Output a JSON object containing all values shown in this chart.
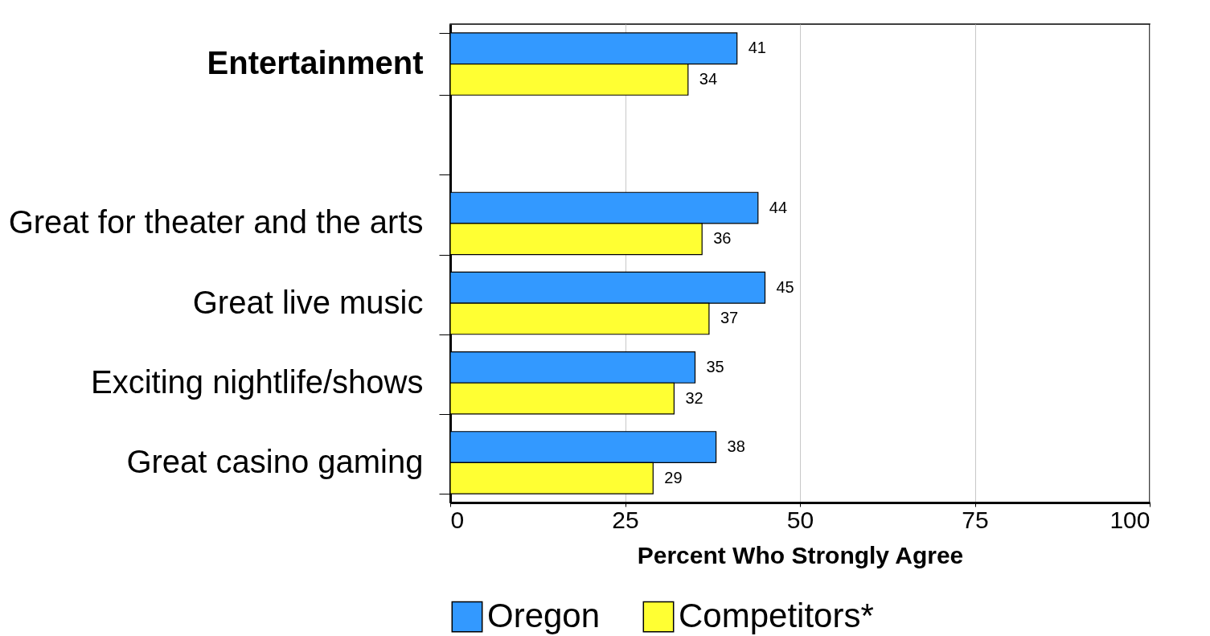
{
  "chart_data": {
    "type": "bar",
    "orientation": "horizontal",
    "categories": [
      "Entertainment",
      null,
      "Great for theater and the arts",
      "Great live music",
      "Exciting nightlife/shows",
      "Great casino gaming"
    ],
    "series": [
      {
        "name": "Oregon",
        "color": "#3399ff",
        "values": [
          41,
          null,
          44,
          45,
          35,
          38
        ]
      },
      {
        "name": "Competitors*",
        "color": "#ffff33",
        "values": [
          34,
          null,
          36,
          37,
          32,
          29
        ]
      }
    ],
    "xlabel": "Percent Who Strongly Agree",
    "xlim": [
      0,
      100
    ],
    "xticks": [
      0,
      25,
      50,
      75,
      100
    ],
    "grid": "x",
    "data_labels": true,
    "legend": "bottom"
  }
}
